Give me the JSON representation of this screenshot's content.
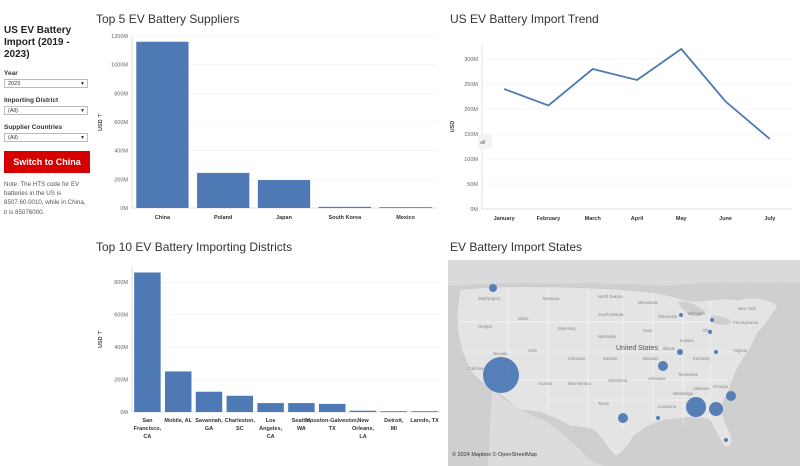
{
  "sidebar": {
    "title": "US EV Battery Import (2019 - 2023)",
    "year_label": "Year",
    "year_value": "2023",
    "district_label": "Importing District",
    "district_value": "(All)",
    "countries_label": "Supplier Countries",
    "countries_value": "(All)",
    "switch_button": "Switch to China",
    "note": "Note: The HTS code for EV batteries in the US is 8507.60.0010, while in China, it is 85076000."
  },
  "panels": {
    "suppliers_title": "Top 5 EV Battery Suppliers",
    "trend_title": "US EV Battery Import Trend",
    "districts_title": "Top 10 EV Battery Importing Districts",
    "states_title": "EV Battery Import States"
  },
  "map": {
    "credit": "© 2024 Mapbox © OpenStreetMap",
    "country_label": "United States",
    "state_labels": [
      "Washington",
      "Montana",
      "North Dakota",
      "Minnesota",
      "Oregon",
      "Idaho",
      "South Dakota",
      "Wyoming",
      "Nevada",
      "Utah",
      "Colorado",
      "Kansas",
      "Missouri",
      "Oklahoma",
      "Texas",
      "Arizona",
      "New Mexico",
      "Nebraska",
      "Iowa",
      "Illinois",
      "Ohio",
      "Tennessee",
      "Georgia",
      "Alabama",
      "Mississippi",
      "Louisiana",
      "Arkansas",
      "Kentucky",
      "California",
      "New York",
      "Pennsylvania",
      "Virginia",
      "Michigan",
      "Wisconsin",
      "Indiana"
    ],
    "bubble_color": "#4e79b4"
  },
  "colors": {
    "bar": "#4e79b4",
    "line": "#4e79b4",
    "accent": "#d70000"
  },
  "chart_data": [
    {
      "type": "bar",
      "title": "Top 5 EV Battery Suppliers",
      "ylabel": "USD ⊤",
      "categories": [
        "China",
        "Poland",
        "Japan",
        "South Korea",
        "Mexico"
      ],
      "values": [
        1160,
        245,
        195,
        8,
        5
      ],
      "yticks": [
        "0M",
        "200M",
        "400M",
        "600M",
        "800M",
        "1000M",
        "1200M"
      ],
      "ylim": [
        0,
        1200
      ]
    },
    {
      "type": "line",
      "title": "US EV Battery Import Trend",
      "ylabel": "USD",
      "categories": [
        "January",
        "February",
        "March",
        "April",
        "May",
        "June",
        "July"
      ],
      "values": [
        240,
        207,
        280,
        258,
        320,
        215,
        140
      ],
      "yticks": [
        "0M",
        "50M",
        "100M",
        "150M",
        "200M",
        "250M",
        "300M"
      ],
      "ylim": [
        0,
        330
      ],
      "annotation": "all"
    },
    {
      "type": "bar",
      "title": "Top 10 EV Battery Importing Districts",
      "ylabel": "USD ⊤",
      "categories": [
        "San Francisco, CA",
        "Mobile, AL",
        "Savannah, GA",
        "Charleston, SC",
        "Los Angeles, CA",
        "Seattle, WA",
        "Houston-Galveston, TX",
        "New Orleans, LA",
        "Detroit, MI",
        "Laredo, TX"
      ],
      "values": [
        860,
        250,
        125,
        100,
        55,
        55,
        50,
        8,
        4,
        3
      ],
      "yticks": [
        "0M",
        "200M",
        "400M",
        "600M",
        "800M"
      ],
      "ylim": [
        0,
        900
      ]
    }
  ]
}
